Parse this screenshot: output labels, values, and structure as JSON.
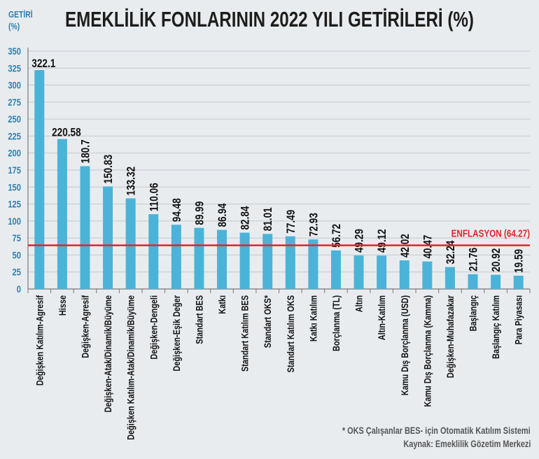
{
  "chart_data": {
    "type": "bar",
    "title": "EMEKLİLİK FONLARININ 2022 YILI GETİRİLERİ (%)",
    "ylabel": "GETİRİ (%)",
    "ylim": [
      0,
      350
    ],
    "yticks": [
      0,
      25,
      50,
      75,
      100,
      125,
      150,
      175,
      200,
      225,
      250,
      275,
      300,
      325,
      350
    ],
    "grid": true,
    "categories": [
      "Değişken Katılım-Agresif",
      "Hisse",
      "Değişken-Agresif",
      "Değişken-Atak/Dinamik/Büyüme",
      "Değişken Katılım-Atak/Dinamik/Büyüme",
      "Değişken-Dengeli",
      "Değişken-Eşik Değer",
      "Standart BES",
      "Katkı",
      "Standart Katılım BES",
      "Standart OKS*",
      "Standart Katılım OKS",
      "Katkı Katılım",
      "Borçlanma (TL)",
      "Altın",
      "Altın-Katılım",
      "Kamu Dış Borçlanma (USD)",
      "Kamu Dış Borçlanma (Kamma)",
      "Değişken-Muhafazakar",
      "Başlangıç",
      "Başlangıç Katılım",
      "Para Piyasası"
    ],
    "values": [
      322.1,
      220.58,
      180.7,
      150.83,
      133.32,
      110.06,
      94.48,
      89.99,
      86.94,
      82.84,
      81.01,
      77.49,
      72.93,
      56.72,
      49.29,
      49.12,
      42.02,
      40.47,
      32.24,
      21.76,
      20.92,
      19.59
    ],
    "value_labels": [
      "322.1",
      "220.58",
      "180.7",
      "150.83",
      "133.32",
      "110.06",
      "94.48",
      "89.99",
      "86.94",
      "82.84",
      "81.01",
      "77.49",
      "72.93",
      "56.72",
      "49.29",
      "49.12",
      "42.02",
      "40.47",
      "32.24",
      "21.76",
      "20.92",
      "19.59"
    ],
    "reference_line": {
      "label": "ENFLASYON (64.27)",
      "value": 64.27,
      "color": "#e3232c"
    },
    "bar_color": "#4bb3d8",
    "axis_color": "#2a7fb0"
  },
  "footnote": "* OKS Çalışanlar BES- için Otomatik Katılım Sistemi",
  "source": "Kaynak: Emeklilik Gözetim Merkezi"
}
